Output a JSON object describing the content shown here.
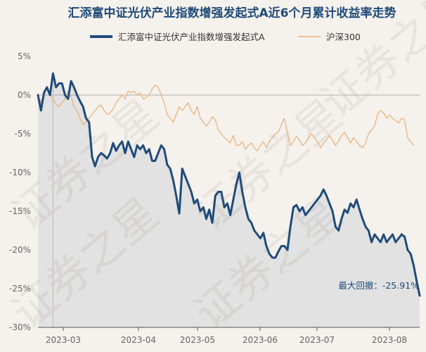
{
  "chart_data": {
    "type": "line",
    "title": "汇添富中证光伏产业指数增强发起式A近6个月累计收益率走势",
    "xlabel": "",
    "ylabel": "",
    "ylim": [
      -30,
      5
    ],
    "yticks": [
      "5%",
      "0%",
      "-5%",
      "-10%",
      "-15%",
      "-20%",
      "-25%",
      "-30%"
    ],
    "xticks": [
      "2023-03",
      "2023-04",
      "2023-05",
      "2023-06",
      "2023-07",
      "2023-08"
    ],
    "grid": false,
    "legend": "top",
    "series": [
      {
        "name": "汇添富中证光伏产业指数增强发起式A",
        "color": "#1f4b7a",
        "values": [
          0,
          -2,
          0.3,
          1.0,
          0,
          2.8,
          1,
          1.5,
          1.5,
          0,
          -0.5,
          1.8,
          1.0,
          0,
          -0.8,
          -1.5,
          -3,
          -3.5,
          -8,
          -9.2,
          -8,
          -7.5,
          -7.8,
          -8.2,
          -7.5,
          -6.2,
          -7.2,
          -6.5,
          -6,
          -7.5,
          -6,
          -7,
          -8,
          -6.5,
          -7,
          -6.5,
          -7.5,
          -7,
          -8.5,
          -8.5,
          -7.5,
          -6.5,
          -7,
          -9,
          -9.5,
          -11,
          -13,
          -15.3,
          -9.5,
          -10.5,
          -11.5,
          -12.5,
          -14,
          -13.5,
          -15,
          -14.5,
          -16,
          -14.8,
          -16.5,
          -13,
          -12.5,
          -12.5,
          -14.5,
          -14,
          -15.5,
          -13.5,
          -11.5,
          -10,
          -12.5,
          -14.5,
          -16,
          -16.5,
          -17.5,
          -18,
          -18.5,
          -17.8,
          -19.5,
          -20.5,
          -21,
          -21,
          -20.2,
          -19.5,
          -19.5,
          -20,
          -17,
          -14.5,
          -14.2,
          -15,
          -14.5,
          -15.5,
          -15,
          -14.5,
          -14,
          -13.5,
          -13,
          -12.2,
          -13,
          -14,
          -15,
          -17,
          -17.5,
          -16,
          -14.8,
          -15.2,
          -14,
          -14.5,
          -13.5,
          -14.8,
          -16,
          -17,
          -17.5,
          -19,
          -18,
          -18.5,
          -19,
          -18,
          -19,
          -18.5,
          -18,
          -19,
          -18.5,
          -18,
          -18.3,
          -20,
          -20.5,
          -22,
          -24,
          -25.9
        ]
      },
      {
        "name": "沪深300",
        "color": "#e8b07a",
        "values": [
          0,
          -1,
          0.5,
          0.8,
          0.2,
          -0.5,
          -1.2,
          -1.5,
          -1,
          -0.5,
          0.5,
          -0.2,
          -1.5,
          -2,
          -3,
          -3.8,
          -3.5,
          -3,
          -2.5,
          -2,
          -1.5,
          -1.3,
          -2,
          -2.5,
          -2.3,
          -1.8,
          -1,
          -0.5,
          0,
          -0.5,
          0.5,
          0.3,
          0.5,
          0,
          0.3,
          -0.5,
          -0.3,
          0,
          0.8,
          1.3,
          1,
          0,
          -1,
          -2.5,
          -3,
          -3.5,
          -2.5,
          -1.5,
          -2,
          -1.5,
          -1,
          -2,
          -2.5,
          -1.5,
          -3,
          -3.5,
          -4,
          -3.5,
          -2.8,
          -3.2,
          -4.5,
          -5,
          -5.5,
          -5.8,
          -6.2,
          -5.2,
          -6.5,
          -6.5,
          -6,
          -7,
          -6.5,
          -6.2,
          -6.8,
          -7.2,
          -6.5,
          -6,
          -6.8,
          -6,
          -5.5,
          -5,
          -4.8,
          -3.8,
          -3,
          -5,
          -6.5,
          -6,
          -5.3,
          -5.8,
          -6.5,
          -6.2,
          -5.5,
          -5,
          -5.5,
          -6,
          -6.8,
          -6.2,
          -5.8,
          -5.2,
          -5.8,
          -6.5,
          -6,
          -5.2,
          -4.8,
          -5.5,
          -6.2,
          -5.5,
          -6,
          -6.5,
          -6.8,
          -6.2,
          -5,
          -4.5,
          -4,
          -2.5,
          -2,
          -2.3,
          -3,
          -2.6,
          -3,
          -3.3,
          -3.6,
          -3,
          -3.2,
          -5.5,
          -6,
          -6.5
        ]
      }
    ],
    "annotation": "最大回撤：-25.91%",
    "watermark": "证券之星"
  }
}
